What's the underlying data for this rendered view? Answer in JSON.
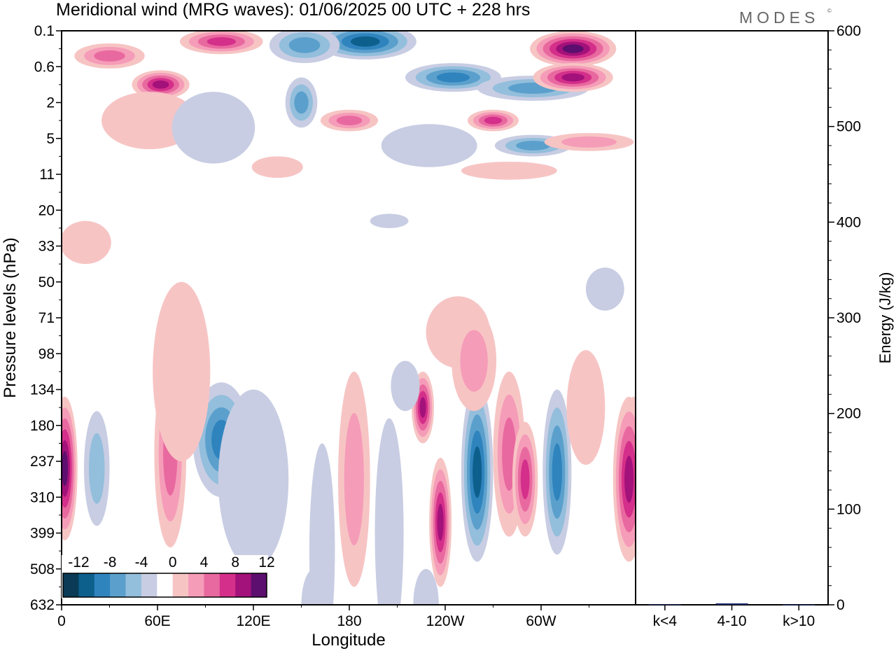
{
  "title": "Meridional wind (MRG waves):  01/06/2025  00 UTC  + 228 hrs",
  "logo": "MODES",
  "logo_mark": "©",
  "chart_data": [
    {
      "type": "heatmap",
      "title": "Meridional wind (MRG waves):  01/06/2025  00 UTC  + 228 hrs",
      "xlabel": "Longitude",
      "ylabel": "Pressure levels (hPa)",
      "x_ticks": [
        "0",
        "60E",
        "120E",
        "180",
        "120W",
        "60W"
      ],
      "y_ticks": [
        "0.1",
        "0.6",
        "2",
        "5",
        "11",
        "20",
        "33",
        "50",
        "71",
        "98",
        "134",
        "180",
        "237",
        "310",
        "399",
        "508",
        "632"
      ],
      "colorbar": {
        "labels": [
          "-12",
          "-8",
          "-4",
          "0",
          "4",
          "8",
          "12"
        ],
        "levels": [
          -14,
          -12,
          -10,
          -8,
          -6,
          -4,
          -2,
          2,
          4,
          6,
          8,
          10,
          12,
          14
        ],
        "colors": [
          "#0a3a55",
          "#0d5f8c",
          "#2f84be",
          "#5ba0cc",
          "#93bedc",
          "#c8cde3",
          "#ffffff",
          "#f7c4c4",
          "#f59cb8",
          "#e8699f",
          "#d42f8a",
          "#a3117a",
          "#5c0f6e"
        ]
      },
      "grid": false
    },
    {
      "type": "bar",
      "categories": [
        "k<4",
        "4-10",
        "k>10"
      ],
      "values": [
        0.5,
        1.5,
        0.2
      ],
      "ylabel": "Energy (J/kg)",
      "ylim": [
        0,
        600
      ],
      "y_ticks": [
        "0",
        "100",
        "200",
        "300",
        "400",
        "500",
        "600"
      ],
      "colors": [
        "#1f2a6b",
        "#1f2a6b",
        "#1f2a6b"
      ]
    }
  ]
}
